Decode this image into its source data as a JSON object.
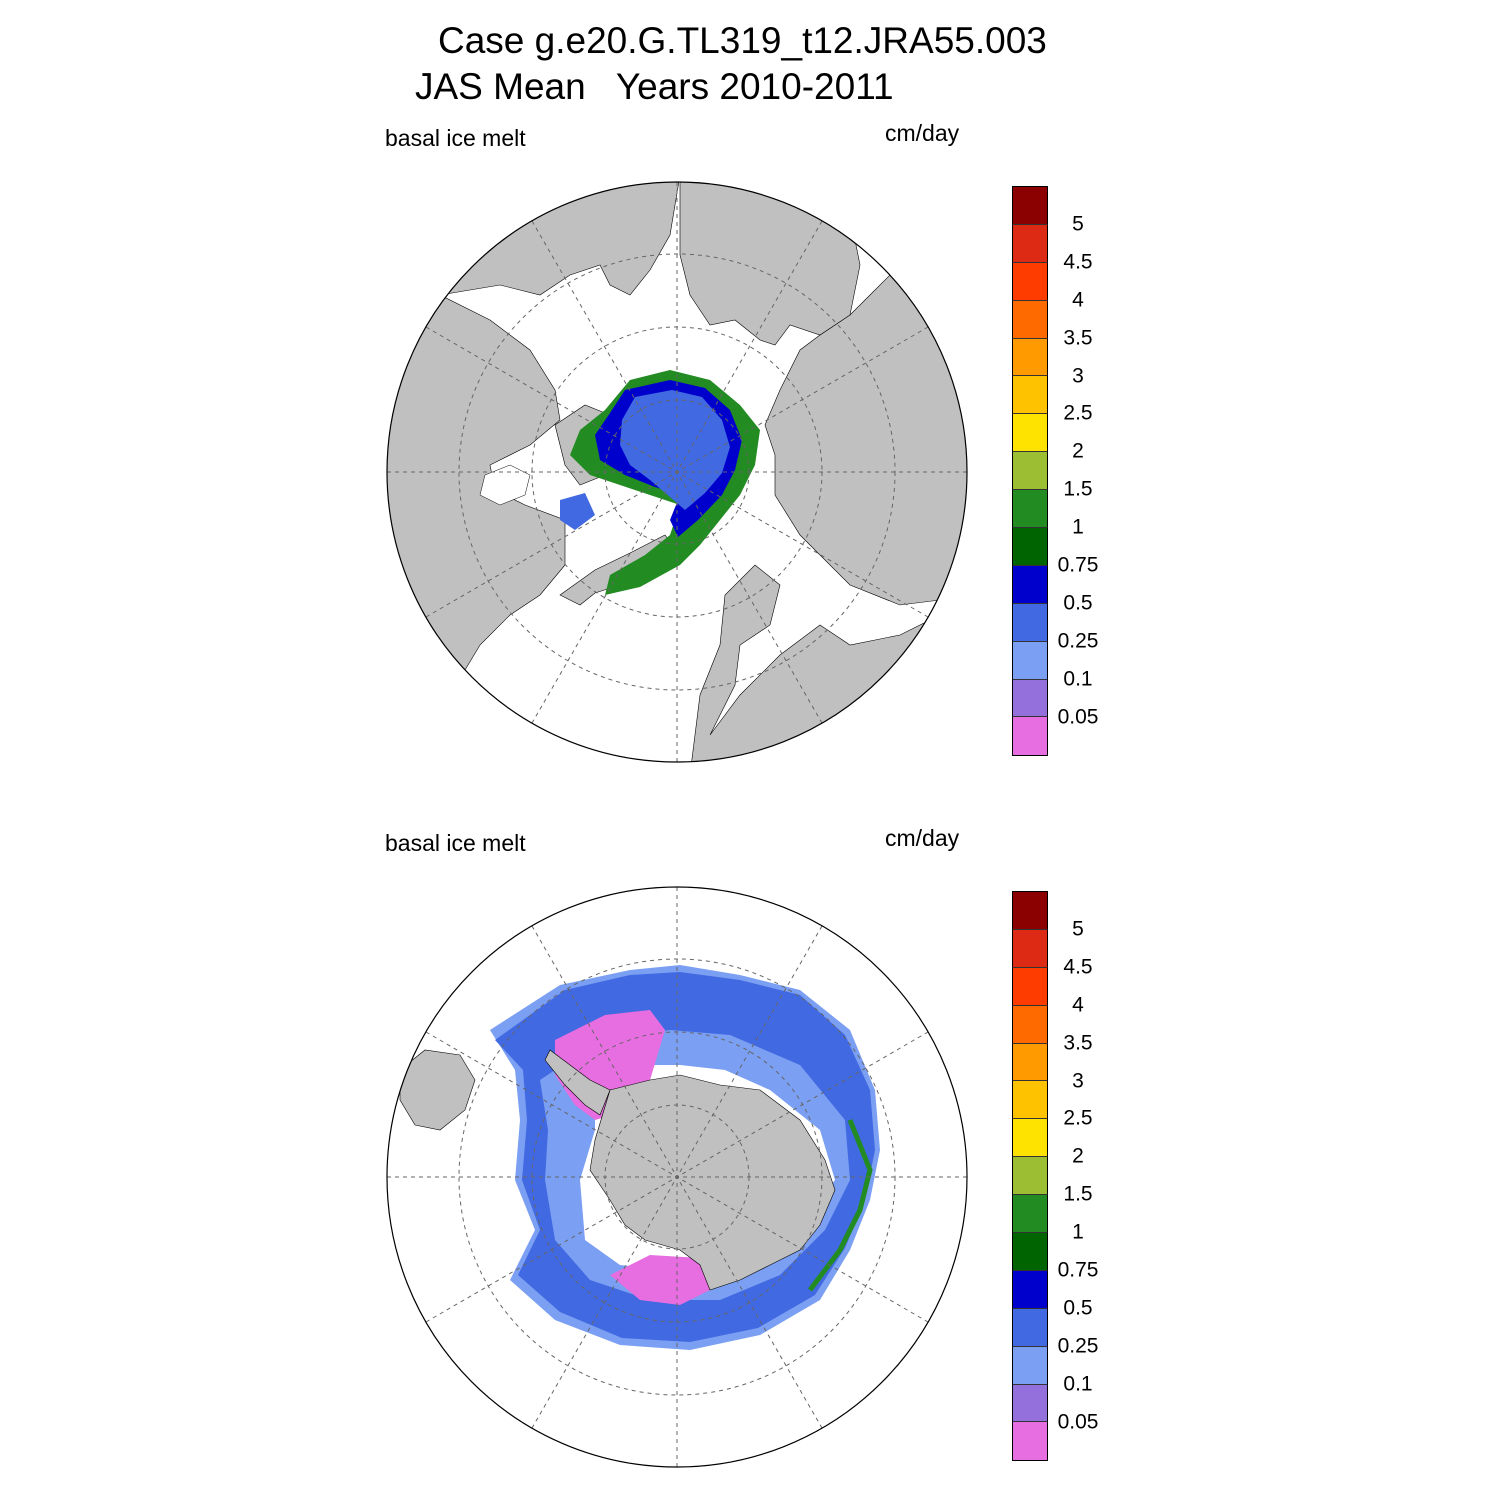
{
  "header": {
    "title_line1": "Case g.e20.G.TL319_t12.JRA55.003",
    "title_line2": "JAS Mean   Years 2010-2011"
  },
  "panels": [
    {
      "name": "arctic",
      "hemisphere": "NH",
      "left_label": "basal ice melt",
      "right_label": "cm/day"
    },
    {
      "name": "antarctic",
      "hemisphere": "SH",
      "left_label": "basal ice melt",
      "right_label": "cm/day"
    }
  ],
  "colorbar": {
    "levels": [
      "5",
      "4.5",
      "4",
      "3.5",
      "3",
      "2.5",
      "2",
      "1.5",
      "1",
      "0.75",
      "0.5",
      "0.25",
      "0.1",
      "0.05"
    ],
    "colors_top_to_bottom": [
      "#8b0000",
      "#dc2a14",
      "#ff3c00",
      "#ff6a00",
      "#ff9a00",
      "#ffc200",
      "#ffe300",
      "#9bbe32",
      "#228b22",
      "#006400",
      "#0000cd",
      "#4169e1",
      "#7b9ff2",
      "#9370db",
      "#e66ee0"
    ]
  },
  "map_colors": {
    "land": "#c0c0c0",
    "ocean": "#ffffff",
    "graticule": "#666666"
  }
}
